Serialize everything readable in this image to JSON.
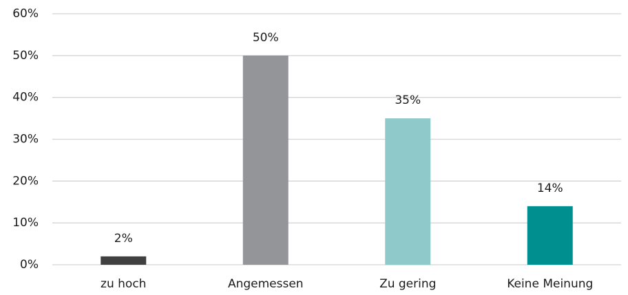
{
  "chart_data": {
    "type": "bar",
    "categories": [
      "zu hoch",
      "Angemessen",
      "Zu gering",
      "Keine Meinung"
    ],
    "values": [
      2,
      50,
      35,
      14
    ],
    "value_labels": [
      "2%",
      "50%",
      "35%",
      "14%"
    ],
    "colors": [
      "#404040",
      "#939598",
      "#8fc9c9",
      "#008f8f"
    ],
    "ylim": [
      0,
      60
    ],
    "yticks": [
      {
        "value": 0,
        "label": "0%"
      },
      {
        "value": 10,
        "label": "10%"
      },
      {
        "value": 20,
        "label": "20%"
      },
      {
        "value": 30,
        "label": "30%"
      },
      {
        "value": 40,
        "label": "40%"
      },
      {
        "value": 50,
        "label": "50%"
      },
      {
        "value": 60,
        "label": "60%"
      }
    ],
    "grid": true
  }
}
